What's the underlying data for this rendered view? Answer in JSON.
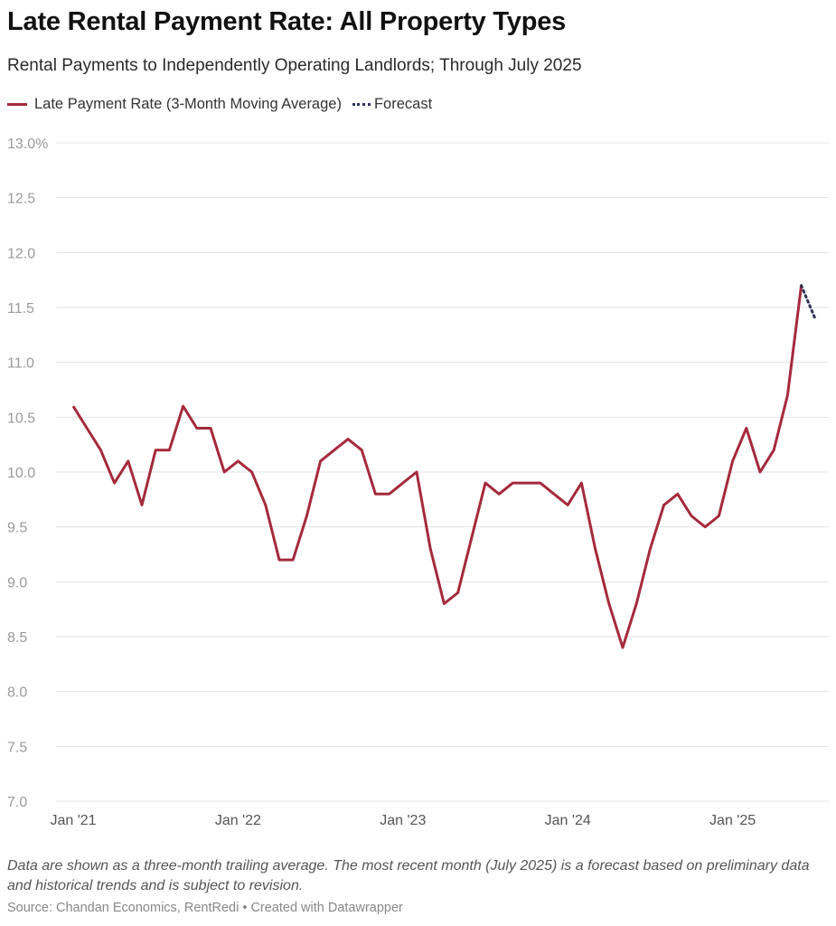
{
  "title": "Late Rental Payment Rate: All Property Types",
  "subtitle": "Rental Payments to Independently Operating Landlords; Through July 2025",
  "legend": {
    "series_label": "Late Payment Rate (3-Month Moving Average)",
    "forecast_label": "Forecast"
  },
  "note": "Data are shown as a three-month trailing average. The most recent month (July 2025) is a forecast based on preliminary data and historical trends and is subject to revision.",
  "source": "Source: Chandan Economics, RentRedi • Created with Datawrapper",
  "colors": {
    "series": "#a52a3c",
    "forecast": "#2f3356",
    "grid": "#e3e3e3"
  },
  "chart_data": {
    "type": "line",
    "title": "Late Rental Payment Rate: All Property Types",
    "ylim": [
      7.0,
      13.0
    ],
    "y_ticks": [
      "7.0",
      "7.5",
      "8.0",
      "8.5",
      "9.0",
      "9.5",
      "10.0",
      "10.5",
      "11.0",
      "11.5",
      "12.0",
      "12.5",
      "13.0%"
    ],
    "x_ticks": [
      "Jan '21",
      "Jan '22",
      "Jan '23",
      "Jan '24",
      "Jan '25"
    ],
    "grid": true,
    "legend_position": "top-left",
    "x_start": "2021-01",
    "series": [
      {
        "name": "Late Payment Rate (3-Month Moving Average)",
        "x_start": "2021-01",
        "values": [
          10.6,
          10.4,
          10.2,
          9.9,
          10.1,
          9.7,
          10.2,
          10.2,
          10.6,
          10.4,
          10.4,
          10.0,
          10.1,
          10.0,
          9.7,
          9.2,
          9.2,
          9.6,
          10.1,
          10.2,
          10.3,
          10.2,
          9.8,
          9.8,
          9.9,
          10.0,
          9.3,
          8.8,
          8.9,
          9.4,
          9.9,
          9.8,
          9.9,
          9.9,
          9.9,
          9.8,
          9.7,
          9.9,
          9.3,
          8.8,
          8.4,
          8.8,
          9.3,
          9.7,
          9.8,
          9.6,
          9.5,
          9.6,
          10.1,
          10.4,
          10.0,
          10.2,
          10.7,
          11.7
        ]
      },
      {
        "name": "Forecast",
        "x_start": "2025-06",
        "values": [
          11.7,
          11.4
        ]
      }
    ]
  }
}
